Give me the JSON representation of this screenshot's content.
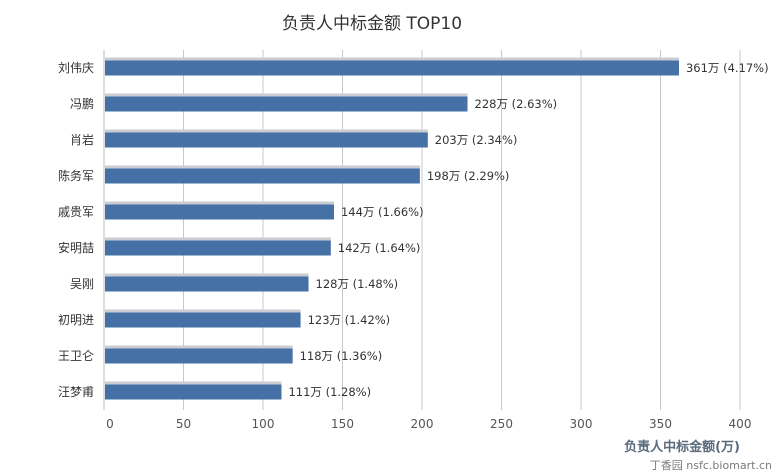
{
  "chart_data": {
    "type": "bar",
    "orientation": "horizontal",
    "title": "负责人中标金额 TOP10",
    "xlabel": "负责人中标金额(万)",
    "categories": [
      "刘伟庆",
      "冯鹏",
      "肖岩",
      "陈务军",
      "戚贵军",
      "安明喆",
      "吴刚",
      "初明进",
      "王卫仑",
      "汪梦甫"
    ],
    "values": [
      361,
      228,
      203,
      198,
      144,
      142,
      128,
      123,
      118,
      111
    ],
    "data_labels": [
      "361万 (4.17%)",
      "228万 (2.63%)",
      "203万 (2.34%)",
      "198万 (2.29%)",
      "144万 (1.66%)",
      "142万 (1.64%)",
      "128万 (1.48%)",
      "123万 (1.42%)",
      "118万 (1.36%)",
      "111万 (1.28%)"
    ],
    "xlim": [
      0,
      400
    ],
    "x_ticks": [
      0,
      50,
      100,
      150,
      200,
      250,
      300,
      350,
      400
    ],
    "grid": true,
    "colors": {
      "bar": "#4571a6",
      "bar_shadow": "#c9ccd1",
      "grid": "#c8c8c8"
    }
  },
  "watermark": "丁香园 nsfc.biomart.cn"
}
